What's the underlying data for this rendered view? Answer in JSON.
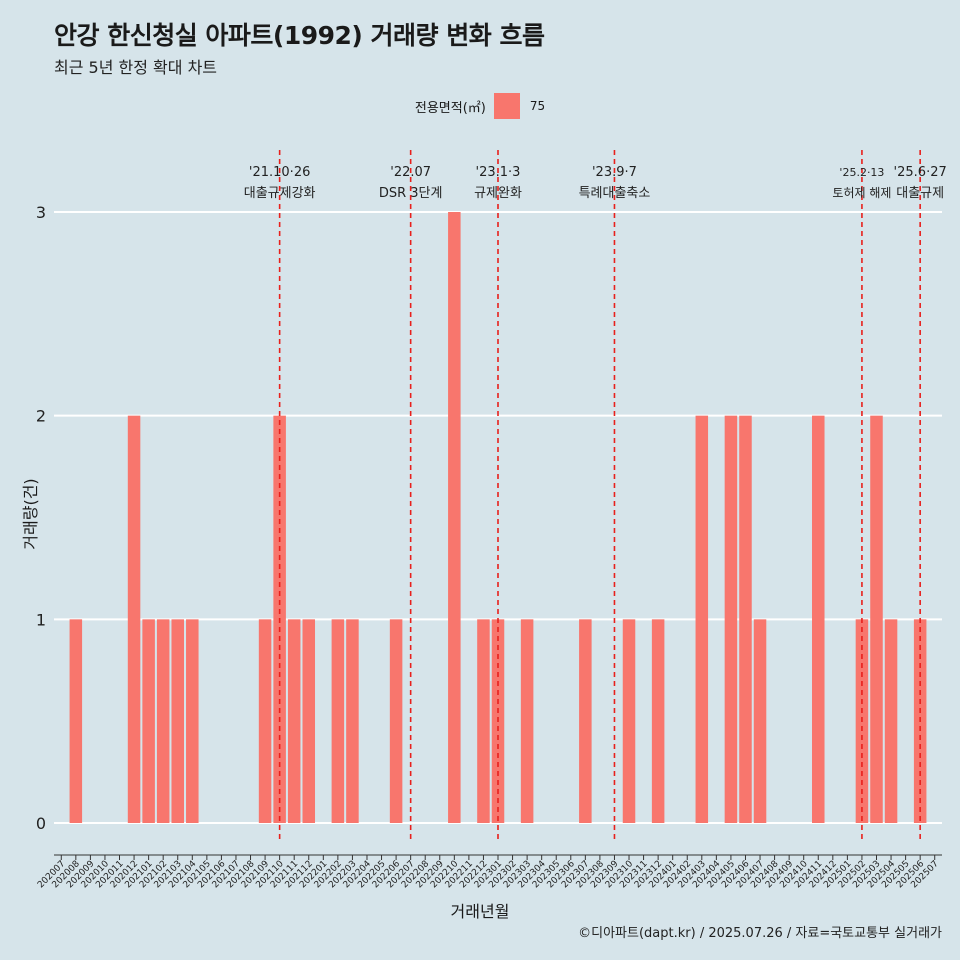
{
  "title": "안강 한신청실 아파트(1992) 거래량 변화 흐름",
  "subtitle": "최근 5년 한정 확대 차트",
  "legend": {
    "title": "전용면적(㎡)",
    "label": "75",
    "color": "#f8766d"
  },
  "caption": "©디아파트(dapt.kr) / 2025.07.26 / 자료=국토교통부 실거래가",
  "chart_data": {
    "type": "bar",
    "xlabel": "거래년월",
    "ylabel": "거래량(건)",
    "ylim": [
      0,
      3
    ],
    "yticks": [
      0,
      1,
      2,
      3
    ],
    "grid": true,
    "legend_position": "top",
    "bar_color": "#f8766d",
    "categories": [
      "202007",
      "202008",
      "202009",
      "202010",
      "202011",
      "202012",
      "202101",
      "202102",
      "202103",
      "202104",
      "202105",
      "202106",
      "202107",
      "202108",
      "202109",
      "202110",
      "202111",
      "202112",
      "202201",
      "202202",
      "202203",
      "202204",
      "202205",
      "202206",
      "202207",
      "202208",
      "202209",
      "202210",
      "202211",
      "202212",
      "202301",
      "202302",
      "202303",
      "202304",
      "202305",
      "202306",
      "202307",
      "202308",
      "202309",
      "202310",
      "202311",
      "202312",
      "202401",
      "202402",
      "202403",
      "202404",
      "202405",
      "202406",
      "202407",
      "202408",
      "202409",
      "202410",
      "202411",
      "202412",
      "202501",
      "202502",
      "202503",
      "202504",
      "202505",
      "202506",
      "202507"
    ],
    "series": [
      {
        "values": [
          0,
          1,
          0,
          0,
          0,
          2,
          1,
          1,
          1,
          1,
          0,
          0,
          0,
          0,
          1,
          2,
          1,
          1,
          0,
          1,
          1,
          0,
          0,
          1,
          0,
          0,
          0,
          3,
          0,
          1,
          1,
          0,
          1,
          0,
          0,
          0,
          1,
          0,
          0,
          1,
          0,
          1,
          0,
          0,
          2,
          0,
          2,
          2,
          1,
          0,
          0,
          0,
          2,
          0,
          0,
          1,
          2,
          1,
          0,
          1,
          0
        ]
      }
    ],
    "annotations": [
      {
        "month": "202110",
        "date": "'21.10·26",
        "label": "대출규제강화"
      },
      {
        "month": "202207",
        "date": "'22.07",
        "label": "DSR 3단계"
      },
      {
        "month": "202301",
        "date": "'23.1·3",
        "label": "규제완화"
      },
      {
        "month": "202309",
        "date": "'23.9·7",
        "label": "특례대출축소"
      },
      {
        "month": "202502",
        "date": "'25.2·13",
        "label": "토허제 해제"
      },
      {
        "month": "202506",
        "date": "'25.6·27",
        "label": "대출규제"
      }
    ]
  }
}
